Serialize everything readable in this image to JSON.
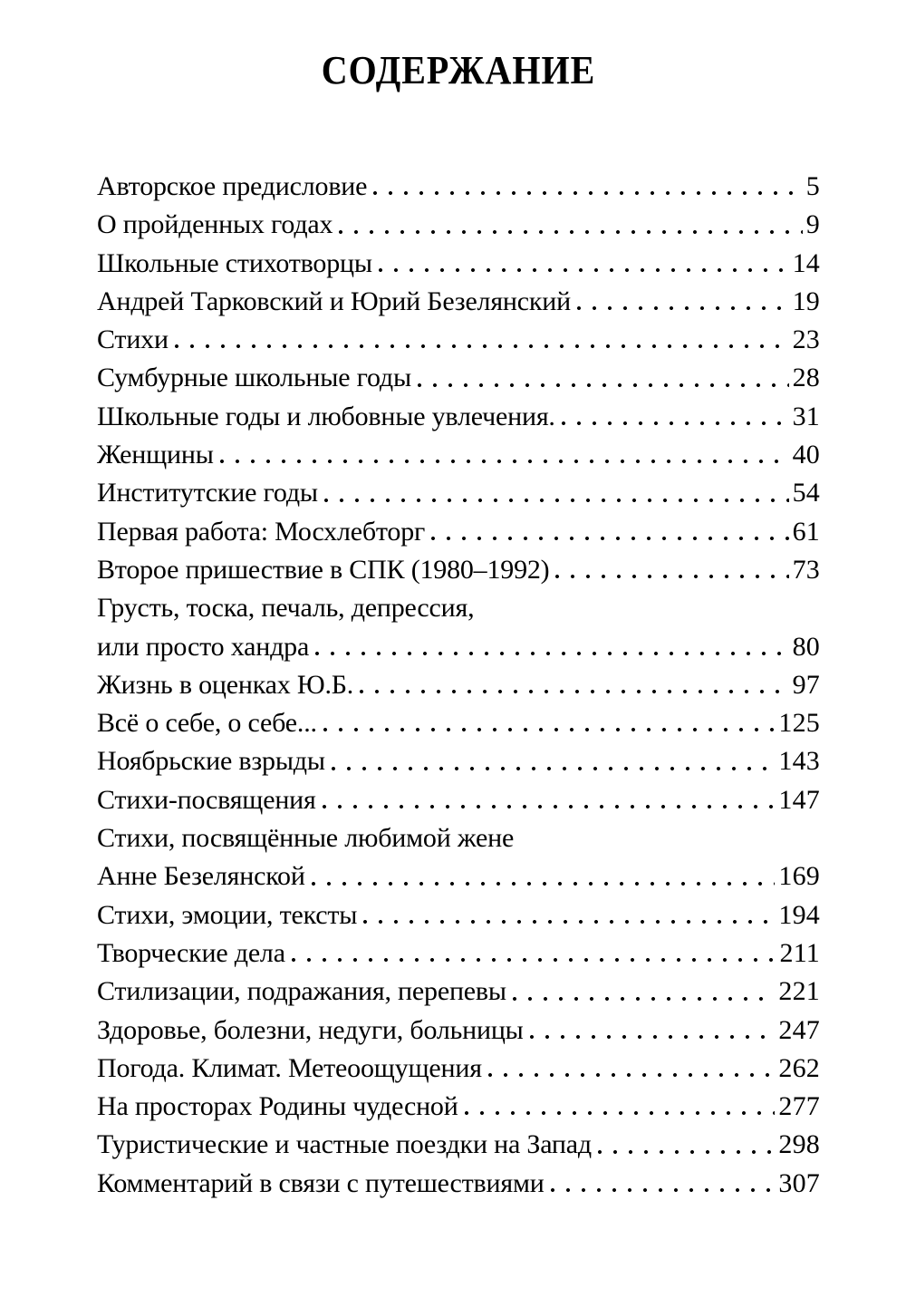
{
  "colors": {
    "background": "#ffffff",
    "text": "#000000"
  },
  "page": {
    "title": "СОДЕРЖАНИЕ"
  },
  "toc": {
    "entries": [
      {
        "title": "Авторское предисловие",
        "page": "5"
      },
      {
        "title": "О пройденных годах",
        "page": "9"
      },
      {
        "title": "Школьные стихотворцы",
        "page": "14"
      },
      {
        "title": "Андрей Тарковский и Юрий Безелянский",
        "page": "19"
      },
      {
        "title": "Стихи",
        "page": "23"
      },
      {
        "title": "Сумбурные школьные годы",
        "page": "28"
      },
      {
        "title": "Школьные годы и любовные увлечения.",
        "page": "31"
      },
      {
        "title": "Женщины",
        "page": "40"
      },
      {
        "title": "Институтские годы",
        "page": "54"
      },
      {
        "title": "Первая работа: Мосхлебторг",
        "page": "61"
      },
      {
        "title": "Второе пришествие в СПК (1980–1992)",
        "page": "73"
      },
      {
        "title": "Грусть, тоска, печаль, депрессия,",
        "page": ""
      },
      {
        "title": "или просто хандра",
        "page": "80"
      },
      {
        "title": "Жизнь в оценках Ю.Б.",
        "page": "97"
      },
      {
        "title": "Всё о себе, о себе...",
        "page": "125"
      },
      {
        "title": "Ноябрьские взрыды",
        "page": "143"
      },
      {
        "title": "Стихи-посвящения",
        "page": "147"
      },
      {
        "title": "Стихи, посвящённые любимой жене",
        "page": ""
      },
      {
        "title": "Анне Безелянской",
        "page": "169"
      },
      {
        "title": "Стихи, эмоции, тексты",
        "page": "194"
      },
      {
        "title": "Творческие дела",
        "page": "211"
      },
      {
        "title": "Стилизации, подражания, перепевы",
        "page": "221"
      },
      {
        "title": "Здоровье, болезни, недуги, больницы",
        "page": "247"
      },
      {
        "title": "Погода. Климат. Метеоощущения",
        "page": "262"
      },
      {
        "title": "На просторах Родины чудесной",
        "page": "277"
      },
      {
        "title": "Туристические и частные поездки на Запад",
        "page": "298"
      },
      {
        "title": "Комментарий в связи с путешествиями",
        "page": "307"
      }
    ]
  }
}
